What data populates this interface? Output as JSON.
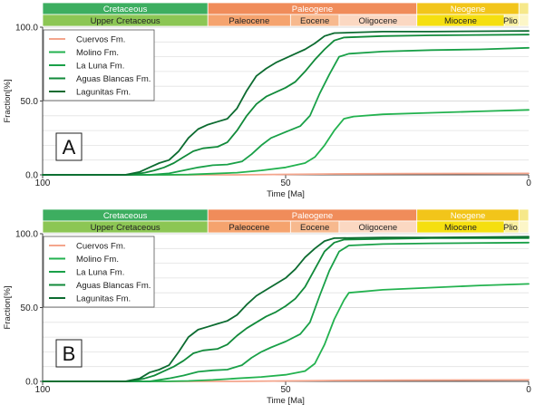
{
  "chart_data": [
    {
      "panel_label": "A",
      "type": "line",
      "xlabel": "Time [Ma]",
      "ylabel": "Fraction[%]",
      "xlim": [
        100,
        0
      ],
      "ylim": [
        0,
        100
      ],
      "x_ticks": [
        "100",
        "50",
        "0"
      ],
      "y_ticks": [
        "0.0",
        "50.0",
        "100.0"
      ],
      "grid": true,
      "legend_position": "top-left",
      "timescale": {
        "periods": [
          {
            "label": "Cretaceous",
            "start": 100,
            "end": 66,
            "color": "#3dae60"
          },
          {
            "label": "Paleogene",
            "start": 66,
            "end": 23,
            "color": "#f08c5a"
          },
          {
            "label": "Neogene",
            "start": 23,
            "end": 2,
            "color": "#f2c51a"
          },
          {
            "label": "",
            "start": 2,
            "end": 0,
            "color": "#f6e88a"
          }
        ],
        "epochs": [
          {
            "label": "Upper Cretaceous",
            "start": 100,
            "end": 66,
            "color": "#8cc654"
          },
          {
            "label": "Paleocene",
            "start": 66,
            "end": 49,
            "color": "#f5a36e"
          },
          {
            "label": "Eocene",
            "start": 49,
            "end": 39,
            "color": "#f7b98e"
          },
          {
            "label": "Oligocene",
            "start": 39,
            "end": 23,
            "color": "#fbd8c2"
          },
          {
            "label": "Miocene",
            "start": 23,
            "end": 5,
            "color": "#f5df10"
          },
          {
            "label": "Plio.",
            "start": 5,
            "end": 2,
            "color": "#faf0a0"
          },
          {
            "label": "",
            "start": 2,
            "end": 0,
            "color": "#fcf6c8"
          }
        ]
      },
      "series": [
        {
          "name": "Cuervos Fm.",
          "color": "#f4a58c",
          "points": [
            [
              100,
              0
            ],
            [
              60,
              0
            ],
            [
              50,
              0.3
            ],
            [
              40,
              0.6
            ],
            [
              25,
              0.8
            ],
            [
              0,
              1
            ]
          ]
        },
        {
          "name": "Molino Fm.",
          "color": "#23b24f",
          "points": [
            [
              100,
              0
            ],
            [
              75,
              0
            ],
            [
              70,
              0.2
            ],
            [
              65,
              0.8
            ],
            [
              60,
              1.5
            ],
            [
              55,
              3
            ],
            [
              50,
              5
            ],
            [
              46,
              8
            ],
            [
              44,
              12
            ],
            [
              42,
              20
            ],
            [
              40,
              30
            ],
            [
              38,
              38
            ],
            [
              36,
              39.5
            ],
            [
              30,
              41
            ],
            [
              20,
              42
            ],
            [
              10,
              43
            ],
            [
              0,
              44
            ]
          ]
        },
        {
          "name": "La Luna Fm.",
          "color": "#19a048",
          "points": [
            [
              100,
              0
            ],
            [
              78,
              0
            ],
            [
              74,
              1
            ],
            [
              71,
              3
            ],
            [
              68,
              5
            ],
            [
              65,
              6.5
            ],
            [
              62,
              7
            ],
            [
              59,
              9
            ],
            [
              57,
              14
            ],
            [
              55,
              20
            ],
            [
              53,
              25
            ],
            [
              50,
              29
            ],
            [
              47,
              33
            ],
            [
              45,
              40
            ],
            [
              43,
              55
            ],
            [
              41,
              68
            ],
            [
              39,
              80
            ],
            [
              37,
              82
            ],
            [
              30,
              83.5
            ],
            [
              20,
              84.5
            ],
            [
              10,
              85
            ],
            [
              0,
              86
            ]
          ]
        },
        {
          "name": "Aguas Blancas Fm.",
          "color": "#118a3a",
          "points": [
            [
              100,
              0
            ],
            [
              82,
              0
            ],
            [
              79,
              1.5
            ],
            [
              77,
              3
            ],
            [
              75,
              5
            ],
            [
              73,
              8
            ],
            [
              71,
              12
            ],
            [
              69,
              16
            ],
            [
              67,
              18
            ],
            [
              64,
              19
            ],
            [
              62,
              22
            ],
            [
              60,
              30
            ],
            [
              58,
              40
            ],
            [
              56,
              48
            ],
            [
              54,
              53
            ],
            [
              52,
              56
            ],
            [
              50,
              59
            ],
            [
              48,
              63
            ],
            [
              46,
              70
            ],
            [
              44,
              78
            ],
            [
              42,
              85
            ],
            [
              40,
              91
            ],
            [
              38,
              93
            ],
            [
              30,
              94
            ],
            [
              20,
              94.5
            ],
            [
              0,
              95
            ]
          ]
        },
        {
          "name": "Lagunitas Fm.",
          "color": "#0c6b30",
          "points": [
            [
              100,
              0
            ],
            [
              83,
              0
            ],
            [
              80,
              2
            ],
            [
              78,
              5
            ],
            [
              76,
              8
            ],
            [
              74,
              10
            ],
            [
              72,
              16
            ],
            [
              70,
              25
            ],
            [
              68,
              31
            ],
            [
              66,
              34
            ],
            [
              64,
              36
            ],
            [
              62,
              38
            ],
            [
              60,
              45
            ],
            [
              58,
              57
            ],
            [
              56,
              67
            ],
            [
              54,
              72
            ],
            [
              52,
              76
            ],
            [
              50,
              79
            ],
            [
              48,
              82
            ],
            [
              46,
              85
            ],
            [
              44,
              89
            ],
            [
              42,
              94
            ],
            [
              40,
              96
            ],
            [
              30,
              97
            ],
            [
              20,
              97
            ],
            [
              0,
              97.5
            ]
          ]
        }
      ]
    },
    {
      "panel_label": "B",
      "type": "line",
      "xlabel": "Time [Ma]",
      "ylabel": "Fraction[%]",
      "xlim": [
        100,
        0
      ],
      "ylim": [
        0,
        100
      ],
      "x_ticks": [
        "100",
        "50",
        "0"
      ],
      "y_ticks": [
        "0.0",
        "50.0",
        "100.0"
      ],
      "grid": true,
      "legend_position": "top-left",
      "timescale": {
        "periods": [
          {
            "label": "Cretaceous",
            "start": 100,
            "end": 66,
            "color": "#3dae60"
          },
          {
            "label": "Paleogene",
            "start": 66,
            "end": 23,
            "color": "#f08c5a"
          },
          {
            "label": "Neogene",
            "start": 23,
            "end": 2,
            "color": "#f2c51a"
          },
          {
            "label": "",
            "start": 2,
            "end": 0,
            "color": "#f6e88a"
          }
        ],
        "epochs": [
          {
            "label": "Upper Cretaceous",
            "start": 100,
            "end": 66,
            "color": "#8cc654"
          },
          {
            "label": "Paleocene",
            "start": 66,
            "end": 49,
            "color": "#f5a36e"
          },
          {
            "label": "Eocene",
            "start": 49,
            "end": 39,
            "color": "#f7b98e"
          },
          {
            "label": "Oligocene",
            "start": 39,
            "end": 23,
            "color": "#fbd8c2"
          },
          {
            "label": "Miocene",
            "start": 23,
            "end": 5,
            "color": "#f5df10"
          },
          {
            "label": "Plio.",
            "start": 5,
            "end": 2,
            "color": "#faf0a0"
          },
          {
            "label": "",
            "start": 2,
            "end": 0,
            "color": "#fcf6c8"
          }
        ]
      },
      "series": [
        {
          "name": "Cuervos Fm.",
          "color": "#f4a58c",
          "points": [
            [
              100,
              0
            ],
            [
              60,
              0
            ],
            [
              50,
              0.3
            ],
            [
              40,
              0.6
            ],
            [
              25,
              0.8
            ],
            [
              0,
              1
            ]
          ]
        },
        {
          "name": "Molino Fm.",
          "color": "#23b24f",
          "points": [
            [
              100,
              0
            ],
            [
              75,
              0
            ],
            [
              70,
              0.3
            ],
            [
              65,
              1
            ],
            [
              60,
              2
            ],
            [
              55,
              3
            ],
            [
              50,
              4.5
            ],
            [
              46,
              7
            ],
            [
              44,
              12
            ],
            [
              42,
              25
            ],
            [
              40,
              42
            ],
            [
              38,
              55
            ],
            [
              37,
              60
            ],
            [
              30,
              62
            ],
            [
              20,
              63.5
            ],
            [
              10,
              65
            ],
            [
              0,
              66
            ]
          ]
        },
        {
          "name": "La Luna Fm.",
          "color": "#19a048",
          "points": [
            [
              100,
              0
            ],
            [
              78,
              0
            ],
            [
              74,
              2
            ],
            [
              71,
              4
            ],
            [
              68,
              6.5
            ],
            [
              65,
              7.5
            ],
            [
              62,
              8
            ],
            [
              59,
              11
            ],
            [
              57,
              16
            ],
            [
              55,
              20
            ],
            [
              53,
              23
            ],
            [
              50,
              27
            ],
            [
              47,
              32
            ],
            [
              45,
              40
            ],
            [
              43,
              58
            ],
            [
              41,
              75
            ],
            [
              39,
              88
            ],
            [
              37,
              92
            ],
            [
              30,
              93
            ],
            [
              20,
              93.5
            ],
            [
              0,
              94
            ]
          ]
        },
        {
          "name": "Aguas Blancas Fm.",
          "color": "#118a3a",
          "points": [
            [
              100,
              0
            ],
            [
              82,
              0
            ],
            [
              79,
              2
            ],
            [
              77,
              4
            ],
            [
              75,
              7
            ],
            [
              73,
              10
            ],
            [
              71,
              14
            ],
            [
              69,
              19
            ],
            [
              67,
              21
            ],
            [
              64,
              22
            ],
            [
              62,
              25
            ],
            [
              60,
              31
            ],
            [
              58,
              36
            ],
            [
              56,
              40
            ],
            [
              54,
              44
            ],
            [
              52,
              47
            ],
            [
              50,
              51
            ],
            [
              48,
              56
            ],
            [
              46,
              64
            ],
            [
              44,
              76
            ],
            [
              42,
              88
            ],
            [
              40,
              94
            ],
            [
              38,
              96
            ],
            [
              30,
              96.5
            ],
            [
              20,
              97
            ],
            [
              0,
              97
            ]
          ]
        },
        {
          "name": "Lagunitas Fm.",
          "color": "#0c6b30",
          "points": [
            [
              100,
              0
            ],
            [
              83,
              0
            ],
            [
              80,
              2
            ],
            [
              78,
              6
            ],
            [
              76,
              8
            ],
            [
              74,
              11
            ],
            [
              72,
              20
            ],
            [
              70,
              30
            ],
            [
              68,
              35
            ],
            [
              66,
              37
            ],
            [
              64,
              39
            ],
            [
              62,
              41
            ],
            [
              60,
              45
            ],
            [
              58,
              52
            ],
            [
              56,
              58
            ],
            [
              54,
              62
            ],
            [
              52,
              66
            ],
            [
              50,
              70
            ],
            [
              48,
              76
            ],
            [
              46,
              84
            ],
            [
              44,
              90
            ],
            [
              42,
              95
            ],
            [
              40,
              97
            ],
            [
              30,
              97.5
            ],
            [
              20,
              97.5
            ],
            [
              0,
              98
            ]
          ]
        }
      ]
    }
  ]
}
